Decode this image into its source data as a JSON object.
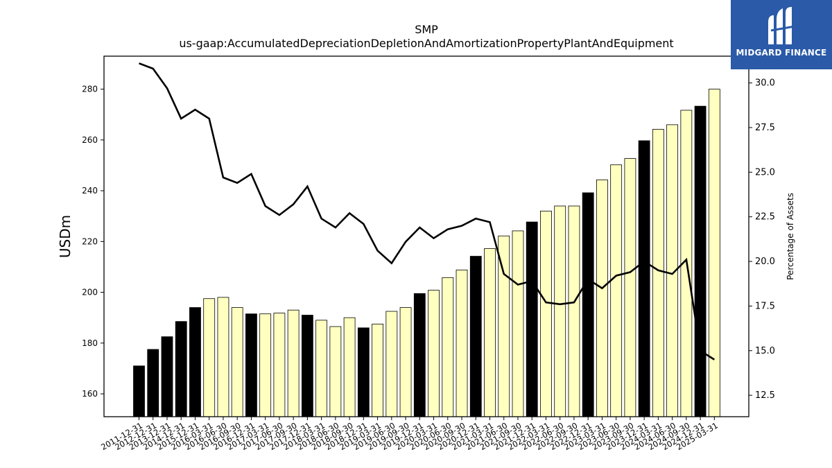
{
  "chart_data": {
    "type": "bar",
    "title": "SMP",
    "subtitle": "us-gaap:AccumulatedDepreciationDepletionAndAmortizationPropertyPlantAndEquipment",
    "ylabel": "USDm",
    "y2label": "Percentage of Assets",
    "ylim": [
      151,
      293
    ],
    "y2lim": [
      11.3,
      31.5
    ],
    "yticks": [
      160,
      180,
      200,
      220,
      240,
      260,
      280
    ],
    "y2ticks": [
      "12.5",
      "15.0",
      "17.5",
      "20.0",
      "22.5",
      "25.0",
      "27.5",
      "30.0"
    ],
    "categories": [
      "2011-12-31",
      "2012-12-31",
      "2013-12-31",
      "2014-12-31",
      "2015-12-31",
      "2016-03-31",
      "2016-06-30",
      "2016-09-30",
      "2016-12-31",
      "2017-03-31",
      "2017-06-30",
      "2017-09-30",
      "2017-12-31",
      "2018-03-31",
      "2018-06-30",
      "2018-09-30",
      "2018-12-31",
      "2019-03-31",
      "2019-06-30",
      "2019-09-30",
      "2019-12-31",
      "2020-03-31",
      "2020-06-30",
      "2020-09-30",
      "2020-12-31",
      "2021-03-31",
      "2021-06-30",
      "2021-09-30",
      "2021-12-31",
      "2022-03-31",
      "2022-06-30",
      "2022-09-30",
      "2022-12-31",
      "2023-03-31",
      "2023-06-30",
      "2023-09-30",
      "2023-12-31",
      "2024-03-31",
      "2024-06-30",
      "2024-09-30",
      "2024-12-31",
      "2025-03-31"
    ],
    "series": [
      {
        "type": "bar",
        "values": [
          171,
          177.5,
          182.5,
          188.5,
          194,
          197.5,
          198,
          194,
          191.5,
          191.5,
          191.8,
          193,
          191,
          189,
          186.5,
          190,
          186,
          187.5,
          192.5,
          194,
          199.5,
          200.8,
          205.8,
          208.8,
          214.2,
          217.2,
          222.2,
          224.2,
          227.7,
          232,
          234,
          234,
          239.2,
          244.3,
          250.2,
          252.7,
          259.7,
          264.2,
          266,
          271.7,
          273.3,
          280
        ],
        "annual_flags": [
          1,
          1,
          1,
          1,
          1,
          0,
          0,
          0,
          1,
          0,
          0,
          0,
          1,
          0,
          0,
          0,
          1,
          0,
          0,
          0,
          1,
          0,
          0,
          0,
          1,
          0,
          0,
          0,
          1,
          0,
          0,
          0,
          1,
          0,
          0,
          0,
          1,
          0,
          0,
          0,
          1,
          0
        ]
      },
      {
        "type": "line",
        "axis": "right",
        "values": [
          31.1,
          30.8,
          29.7,
          28.0,
          28.5,
          28.0,
          24.7,
          24.4,
          24.9,
          23.1,
          22.6,
          23.2,
          24.2,
          22.4,
          21.9,
          22.7,
          22.1,
          20.6,
          19.9,
          21.1,
          21.9,
          21.3,
          21.8,
          22.0,
          22.4,
          22.2,
          19.3,
          18.7,
          18.9,
          17.7,
          17.6,
          17.7,
          19.0,
          18.5,
          19.2,
          19.4,
          20.0,
          19.5,
          19.3,
          20.1,
          15.0,
          14.5
        ]
      }
    ],
    "colors": {
      "annual_bar": "#000000",
      "quarter_bar": "#ffffc0",
      "line": "#000000"
    }
  },
  "logo": {
    "text": "MIDGARD FINANCE",
    "bg": "#2a5aa8"
  }
}
